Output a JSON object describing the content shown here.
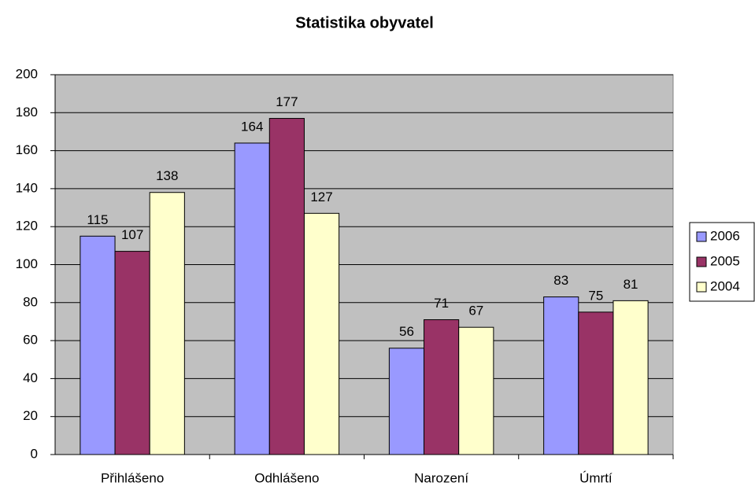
{
  "chart_data": {
    "type": "bar",
    "title": "Statistika obyvatel",
    "categories": [
      "Přihlášeno",
      "Odhlášeno",
      "Narození",
      "Úmrtí"
    ],
    "series": [
      {
        "name": "2006",
        "color": "#9999ff",
        "values": [
          115,
          164,
          56,
          83
        ]
      },
      {
        "name": "2005",
        "color": "#993366",
        "values": [
          107,
          177,
          71,
          75
        ]
      },
      {
        "name": "2004",
        "color": "#ffffcc",
        "values": [
          138,
          127,
          67,
          81
        ]
      }
    ],
    "ylim": [
      0,
      200
    ],
    "yticks": [
      0,
      20,
      40,
      60,
      80,
      100,
      120,
      140,
      160,
      180,
      200
    ],
    "grid": true,
    "legend": "right",
    "plot_background": "#c0c0c0"
  }
}
